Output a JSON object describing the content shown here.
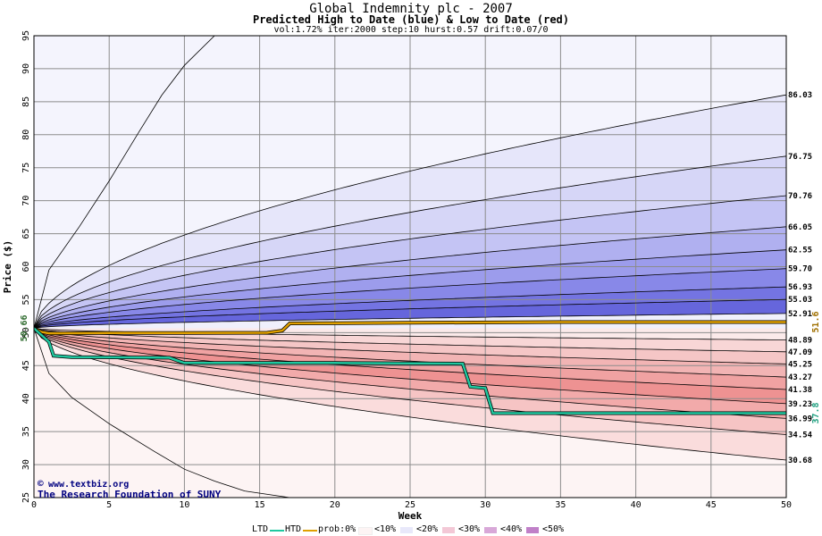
{
  "title": "Global Indemnity plc - 2007",
  "subtitle": "Predicted High to Date (blue) &  Low to Date (red)",
  "params": "vol:1.72% iter:2000 step:10 hurst:0.57 drift:0.07/0",
  "watermark": {
    "site": "www.textbiz.org",
    "org": "The Research Foundation of SUNY"
  },
  "legend": {
    "ltd": "LTD",
    "htd": "HTD",
    "prob_label": "prob:0%",
    "bands": [
      "<10%",
      "<20%",
      "<30%",
      "<40%",
      "<50%"
    ]
  },
  "colors": {
    "blue_band": [
      "#eeeefc",
      "#dcdcf8",
      "#c6c6f4",
      "#aeaef0",
      "#9494ec",
      "#7a7ae6",
      "#6262de"
    ],
    "red_band": [
      "#fcecec",
      "#f9d8d8",
      "#f6c4c4",
      "#f3aeae",
      "#f09898",
      "#ec8484",
      "#e87474"
    ],
    "ltd": "#20c8a0",
    "htd": "#e0a000",
    "grid": "#8c8c8c"
  },
  "chart_data": {
    "type": "line",
    "xlabel": "Week",
    "ylabel": "Price ($)",
    "xlim": [
      0,
      50
    ],
    "ylim": [
      25,
      95
    ],
    "xticks": [
      0,
      5,
      10,
      15,
      20,
      25,
      30,
      35,
      40,
      45,
      50
    ],
    "yticks": [
      25,
      30,
      35,
      40,
      45,
      50,
      55,
      60,
      65,
      70,
      75,
      80,
      85,
      90,
      95
    ],
    "start_price": 50.66,
    "start_label": "50.66",
    "htd_end_label": "51.6",
    "ltd_end_label": "37.8",
    "high_percentiles": [
      {
        "label": "86.03",
        "end": 86.03
      },
      {
        "label": "76.75",
        "end": 76.75
      },
      {
        "label": "70.76",
        "end": 70.76
      },
      {
        "label": "66.05",
        "end": 66.05
      },
      {
        "label": "62.55",
        "end": 62.55
      },
      {
        "label": "59.70",
        "end": 59.7
      },
      {
        "label": "56.93",
        "end": 56.93
      },
      {
        "label": "55.03",
        "end": 55.03
      },
      {
        "label": "52.91",
        "end": 52.91
      }
    ],
    "low_percentiles": [
      {
        "label": "48.89",
        "end": 48.89
      },
      {
        "label": "47.09",
        "end": 47.09
      },
      {
        "label": "45.25",
        "end": 45.25
      },
      {
        "label": "43.27",
        "end": 43.27
      },
      {
        "label": "41.38",
        "end": 41.38
      },
      {
        "label": "39.23",
        "end": 39.23
      },
      {
        "label": "36.99",
        "end": 36.99
      },
      {
        "label": "34.54",
        "end": 34.54
      },
      {
        "label": "30.68",
        "end": 30.68
      }
    ],
    "outer_high_path": [
      [
        0,
        50.66
      ],
      [
        1,
        59.5
      ],
      [
        3,
        66
      ],
      [
        5,
        73
      ],
      [
        7,
        80.5
      ],
      [
        8.5,
        86
      ],
      [
        10,
        90.5
      ],
      [
        12,
        95
      ]
    ],
    "outer_low_path": [
      [
        0,
        50.66
      ],
      [
        1,
        43.8
      ],
      [
        2.5,
        40.2
      ],
      [
        5,
        36.2
      ],
      [
        8,
        32
      ],
      [
        10,
        29.3
      ],
      [
        12,
        27.5
      ],
      [
        14,
        26
      ],
      [
        17,
        25
      ]
    ],
    "htd_path": [
      [
        0,
        50.66
      ],
      [
        0.5,
        50.1
      ],
      [
        1,
        49.9
      ],
      [
        5,
        49.95
      ],
      [
        10,
        49.95
      ],
      [
        15.5,
        49.98
      ],
      [
        16.5,
        50.3
      ],
      [
        17,
        51.4
      ],
      [
        25,
        51.5
      ],
      [
        35,
        51.6
      ],
      [
        50,
        51.6
      ]
    ],
    "ltd_path": [
      [
        0,
        50.66
      ],
      [
        1,
        48.6
      ],
      [
        1.3,
        46.5
      ],
      [
        2.5,
        46.3
      ],
      [
        9,
        46.2
      ],
      [
        9.5,
        45.8
      ],
      [
        10,
        45.4
      ],
      [
        20,
        45.4
      ],
      [
        28.5,
        45.3
      ],
      [
        29,
        41.8
      ],
      [
        30,
        41.6
      ],
      [
        30.5,
        37.8
      ],
      [
        50,
        37.8
      ]
    ]
  }
}
